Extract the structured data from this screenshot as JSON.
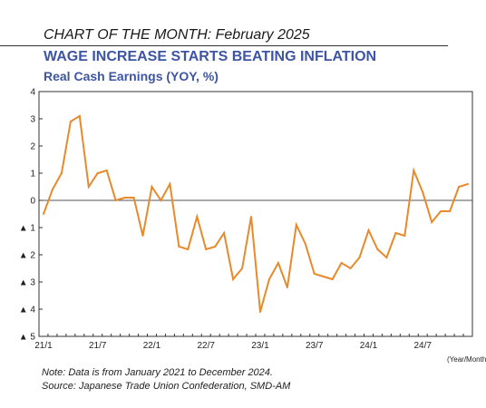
{
  "header": {
    "kicker": "CHART OF THE MONTH: February 2025"
  },
  "chart_data": {
    "type": "line",
    "title": "WAGE INCREASE STARTS BEATING INFLATION",
    "subtitle": "Real Cash Earnings (YOY, %)",
    "xlabel": "(Year/Month)",
    "ylabel": "",
    "ylim": [
      -5,
      4
    ],
    "yticks": [
      4,
      3,
      2,
      1,
      0,
      -1,
      -2,
      -3,
      -4,
      -5
    ],
    "ytick_labels": [
      "4",
      "3",
      "2",
      "1",
      "0",
      "▲ 1",
      "▲ 2",
      "▲ 3",
      "▲ 4",
      "▲ 5"
    ],
    "xtick_labels": [
      "21/1",
      "21/7",
      "22/1",
      "22/7",
      "23/1",
      "23/7",
      "24/1",
      "24/7"
    ],
    "xtick_indices": [
      0,
      6,
      12,
      18,
      24,
      30,
      36,
      42
    ],
    "grid": false,
    "zero_line": true,
    "series": [
      {
        "color": "#e8892b",
        "values": [
          -0.5,
          0.4,
          1.0,
          2.9,
          3.1,
          0.5,
          1.0,
          1.1,
          0.0,
          0.1,
          0.1,
          -1.3,
          0.5,
          0.0,
          0.6,
          -1.7,
          -1.8,
          -0.6,
          -1.8,
          -1.7,
          -1.2,
          -2.9,
          -2.5,
          -0.6,
          -4.1,
          -2.9,
          -2.3,
          -3.2,
          -0.9,
          -1.6,
          -2.7,
          -2.8,
          -2.9,
          -2.3,
          -2.5,
          -2.1,
          -1.1,
          -1.8,
          -2.1,
          -1.2,
          -1.3,
          1.1,
          0.3,
          -0.8,
          -0.4,
          -0.4,
          0.5,
          0.6
        ]
      }
    ]
  },
  "notes": {
    "line1": "Note: Data is from January 2021 to December 2024.",
    "line2": "Source: Japanese Trade Union Confederation, SMD-AM"
  }
}
